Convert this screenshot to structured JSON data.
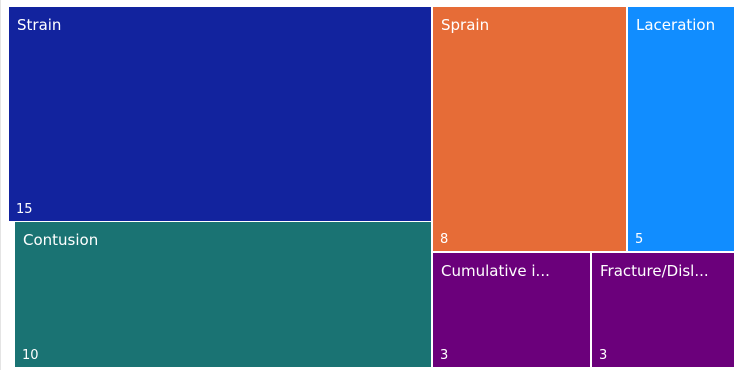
{
  "chart_data": {
    "type": "treemap",
    "items": [
      {
        "name": "Strain",
        "label": "Strain",
        "value": 15,
        "color": "#12239e"
      },
      {
        "name": "Contusion",
        "label": "Contusion",
        "value": 10,
        "color": "#1a7373"
      },
      {
        "name": "Sprain",
        "label": "Sprain",
        "value": 8,
        "color": "#e66c37"
      },
      {
        "name": "Laceration",
        "label": "Laceration",
        "value": 5,
        "color": "#118dff"
      },
      {
        "name": "Cumulative injury",
        "label": "Cumulative i...",
        "value": 3,
        "color": "#6b007b"
      },
      {
        "name": "Fracture/Dislocation",
        "label": "Fracture/Disl...",
        "value": 3,
        "color": "#6b007b"
      }
    ]
  }
}
